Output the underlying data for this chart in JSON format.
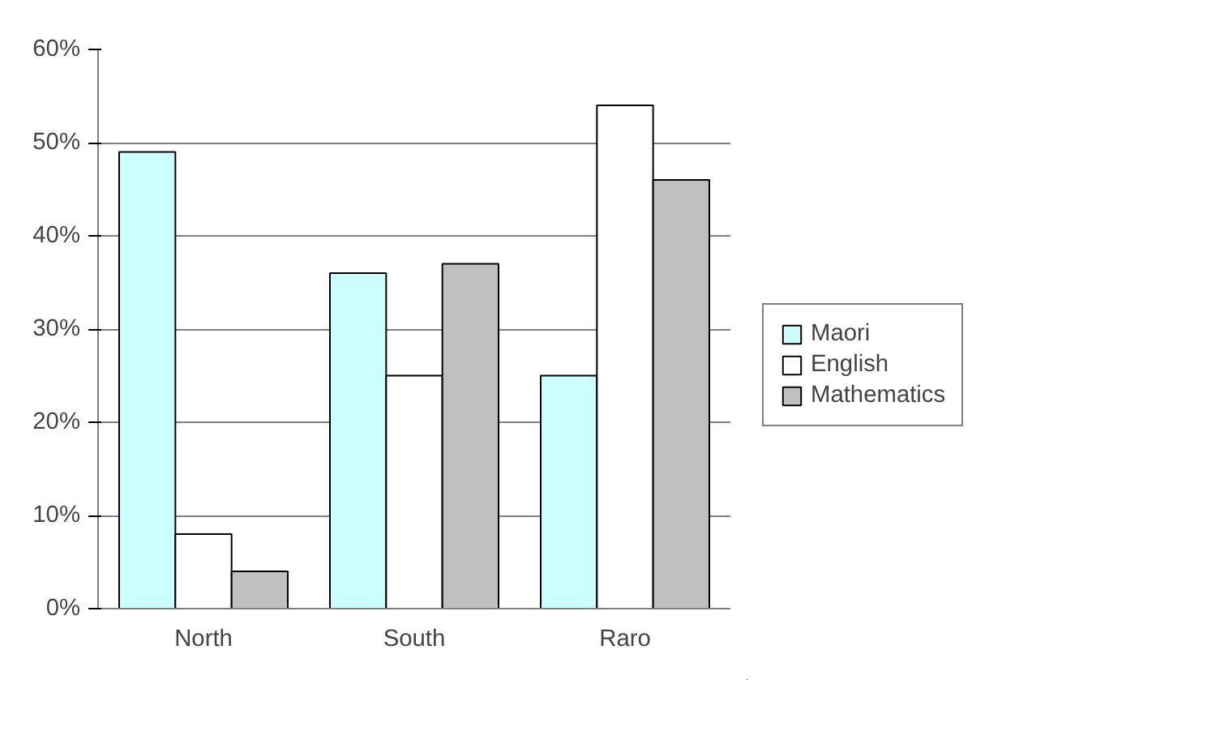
{
  "chart_data": {
    "type": "bar",
    "categories": [
      "North",
      "South",
      "Raro"
    ],
    "series": [
      {
        "name": "Maori",
        "color": "#ccffff",
        "values": [
          49,
          36,
          25
        ]
      },
      {
        "name": "English",
        "color": "#ffffff",
        "values": [
          8,
          25,
          54
        ]
      },
      {
        "name": "Mathematics",
        "color": "#c0c0c0",
        "values": [
          4,
          37,
          46
        ]
      }
    ],
    "ylim": [
      0,
      60
    ],
    "yticks": [
      {
        "value": 0,
        "label": "0%"
      },
      {
        "value": 10,
        "label": "10%"
      },
      {
        "value": 20,
        "label": "20%"
      },
      {
        "value": 30,
        "label": "30%"
      },
      {
        "value": 40,
        "label": "40%"
      },
      {
        "value": 50,
        "label": "50%"
      },
      {
        "value": 60,
        "label": "60%"
      }
    ],
    "grid": "y",
    "legend": "right"
  }
}
